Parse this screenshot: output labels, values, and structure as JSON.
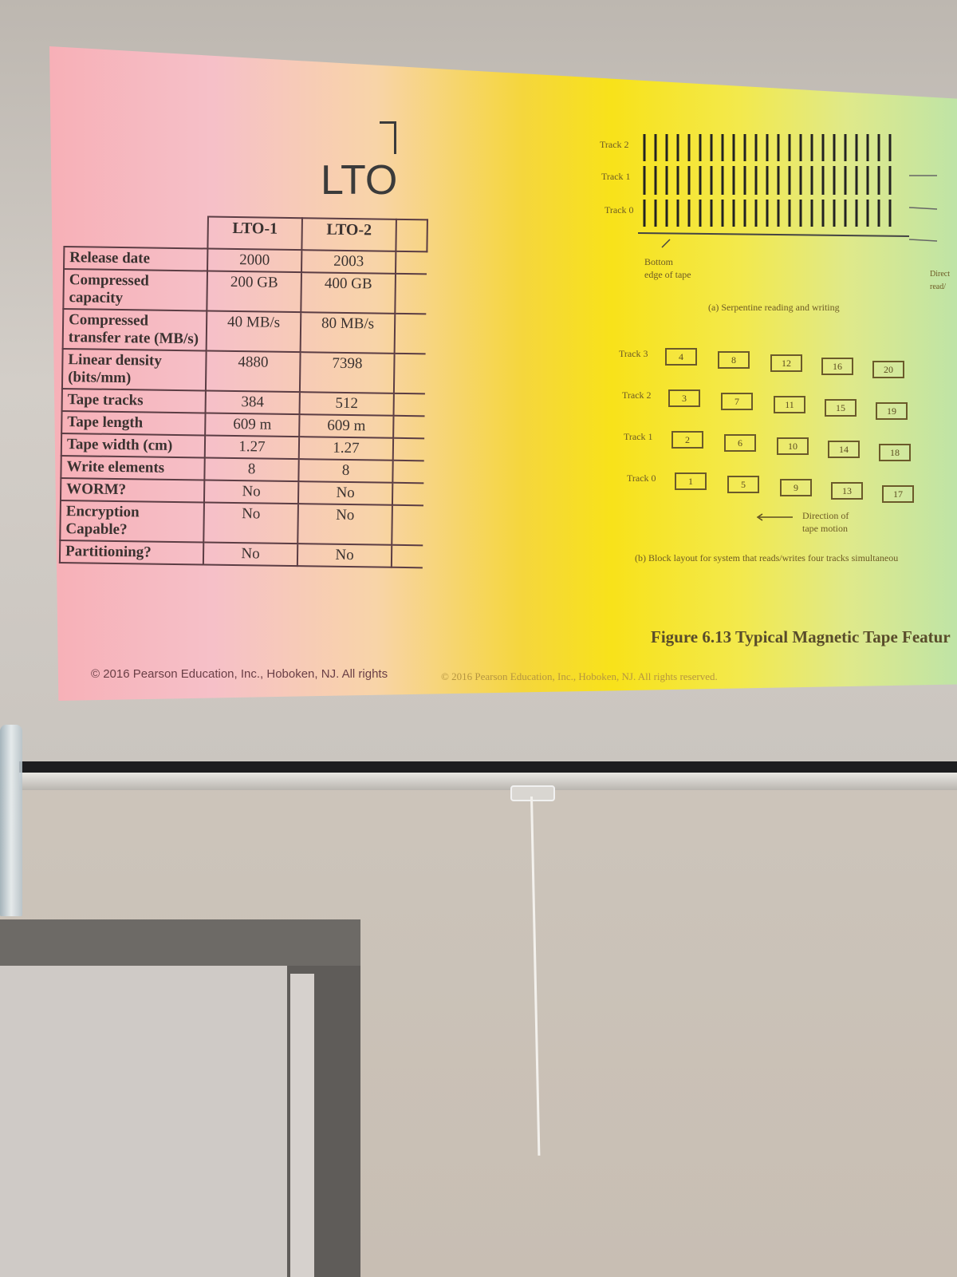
{
  "slide_left": {
    "title": "LTO",
    "columns": [
      "LTO-1",
      "LTO-2"
    ],
    "rows": [
      {
        "label": "Release date",
        "values": [
          "2000",
          "2003"
        ]
      },
      {
        "label": "Compressed capacity",
        "values": [
          "200 GB",
          "400 GB"
        ]
      },
      {
        "label": "Compressed transfer rate (MB/s)",
        "values": [
          "40 MB/s",
          "80 MB/s"
        ]
      },
      {
        "label": "Linear density (bits/mm)",
        "values": [
          "4880",
          "7398"
        ]
      },
      {
        "label": "Tape tracks",
        "values": [
          "384",
          "512"
        ]
      },
      {
        "label": "Tape length",
        "values": [
          "609 m",
          "609 m"
        ]
      },
      {
        "label": "Tape width (cm)",
        "values": [
          "1.27",
          "1.27"
        ]
      },
      {
        "label": "Write elements",
        "values": [
          "8",
          "8"
        ]
      },
      {
        "label": "WORM?",
        "values": [
          "No",
          "No"
        ]
      },
      {
        "label": "Encryption Capable?",
        "values": [
          "No",
          "No"
        ]
      },
      {
        "label": "Partitioning?",
        "values": [
          "No",
          "No"
        ]
      }
    ],
    "copyright": "© 2016 Pearson Education, Inc., Hoboken, NJ. All rights"
  },
  "slide_right": {
    "serpentine": {
      "tracks": [
        "Track 2",
        "Track 1",
        "Track 0"
      ],
      "bottom_note_1": "Bottom",
      "bottom_note_2": "edge of tape",
      "caption": "(a) Serpentine reading and writing",
      "direction_1": "Direct",
      "direction_2": "read/"
    },
    "block_layout": {
      "tracks": [
        "Track 3",
        "Track 2",
        "Track 1",
        "Track 0"
      ],
      "blocks": [
        [
          "4",
          "8",
          "12",
          "16",
          "20"
        ],
        [
          "3",
          "7",
          "11",
          "15",
          "19"
        ],
        [
          "2",
          "6",
          "10",
          "14",
          "18"
        ],
        [
          "1",
          "5",
          "9",
          "13",
          "17"
        ]
      ],
      "direction_1": "Direction of",
      "direction_2": "tape motion",
      "caption": "(b) Block layout for system that reads/writes four tracks simultaneou"
    },
    "figure_title": "Figure 6.13 Typical Magnetic Tape Featur",
    "copyright": "© 2016 Pearson Education, Inc., Hoboken, NJ. All rights reserved."
  }
}
